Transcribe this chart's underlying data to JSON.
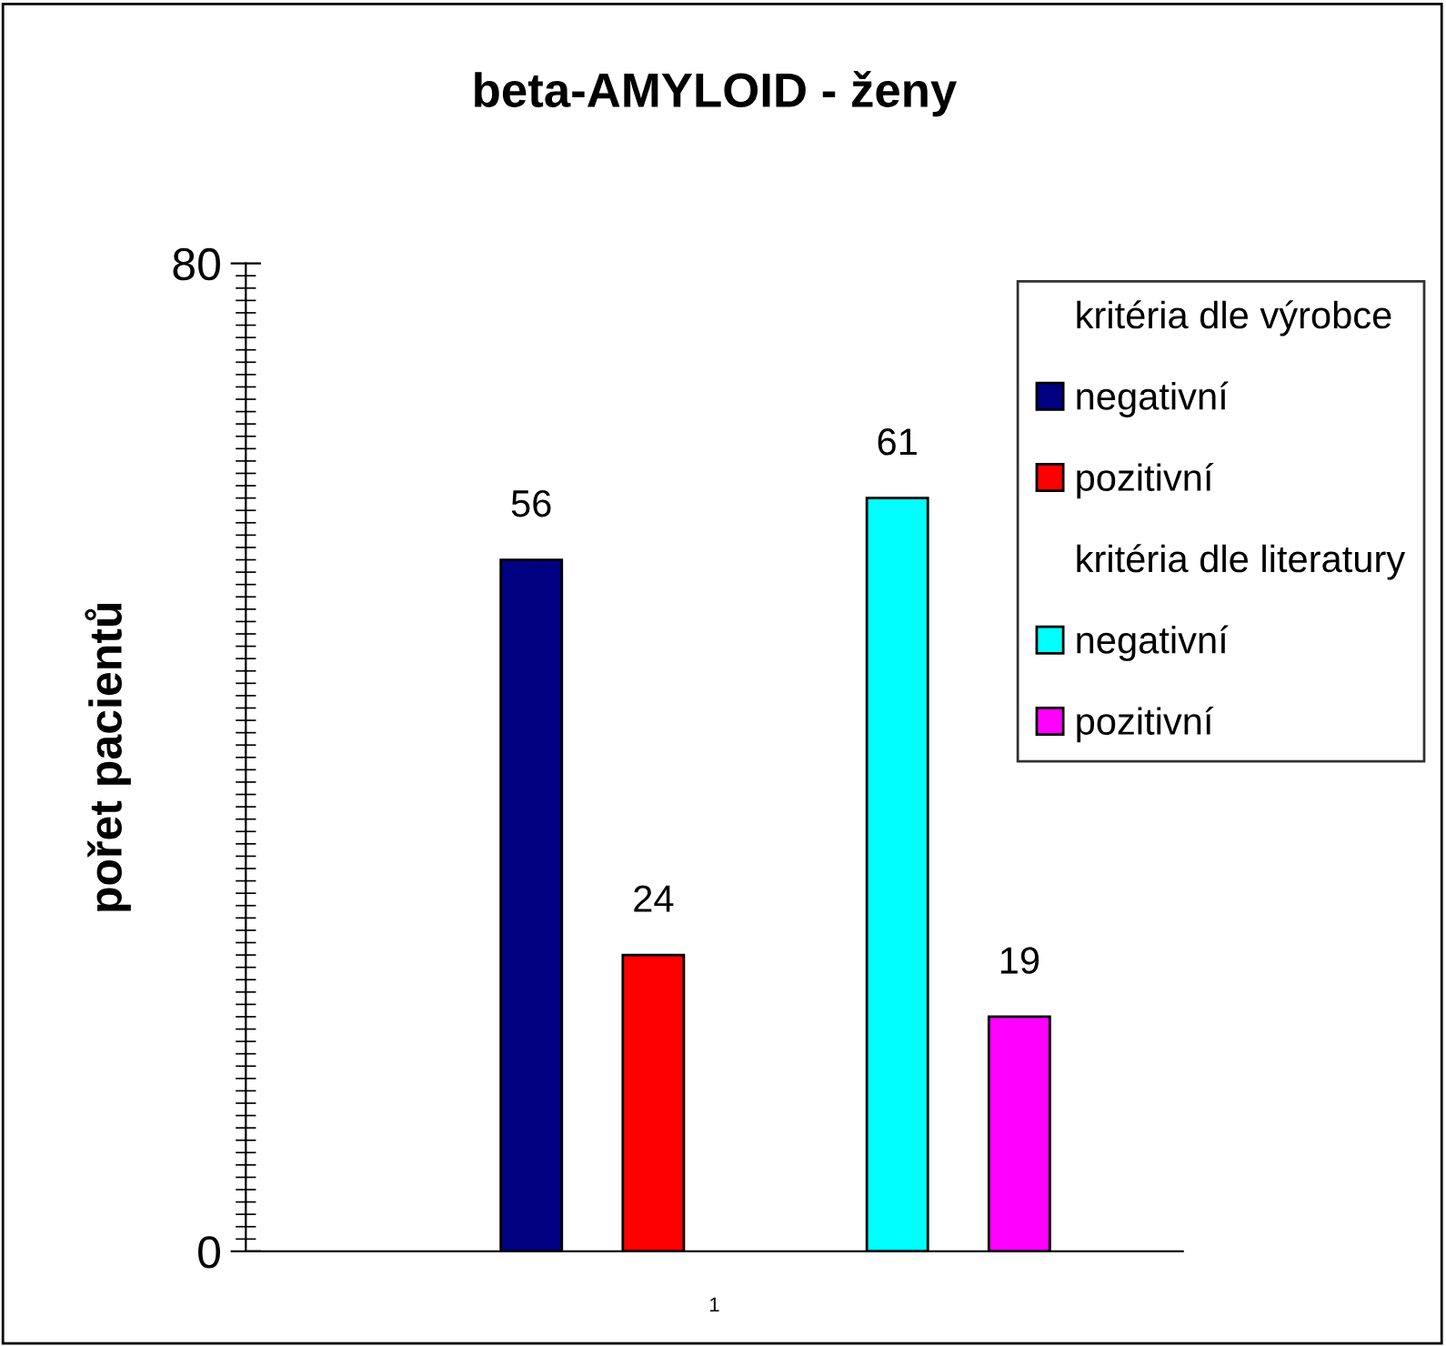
{
  "chart_data": {
    "type": "bar",
    "title": "beta-AMYLOID - ženy",
    "ylabel": "pořet pacientů",
    "categories": [
      "1"
    ],
    "series": [
      {
        "name": "kritéria dle výrobce",
        "color": null,
        "values": [
          null
        ]
      },
      {
        "name": "negativní",
        "color": "#000080",
        "values": [
          56
        ]
      },
      {
        "name": "pozitivní",
        "color": "#ff0000",
        "values": [
          24
        ]
      },
      {
        "name": "kritéria dle literatury",
        "color": null,
        "values": [
          null
        ]
      },
      {
        "name": "negativní",
        "color": "#00ffff",
        "values": [
          61
        ]
      },
      {
        "name": "pozitivní",
        "color": "#ff00ff",
        "values": [
          19
        ]
      }
    ],
    "ylim": [
      0,
      80
    ],
    "yticks": [
      0,
      80
    ],
    "grid": false,
    "legend": "top right",
    "data_labels": true
  }
}
